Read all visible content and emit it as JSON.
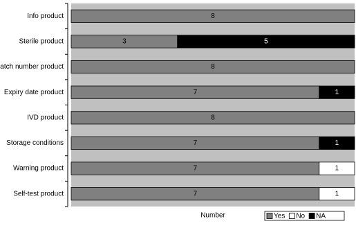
{
  "chart_data": {
    "type": "stacked-bar-horizontal",
    "x_label": "Number",
    "categories": [
      "Info product",
      "Sterile product",
      "Batch number product",
      "Expiry date product",
      "IVD product",
      "Storage conditions",
      "Warning product",
      "Self-test product"
    ],
    "series": [
      {
        "name": "Yes",
        "color": "#808080",
        "values": [
          8,
          3,
          8,
          7,
          8,
          7,
          7,
          7
        ]
      },
      {
        "name": "No",
        "color": "#ffffff",
        "values": [
          null,
          null,
          null,
          null,
          null,
          null,
          1,
          1
        ]
      },
      {
        "name": "NA",
        "color": "#000000",
        "values": [
          null,
          5,
          null,
          1,
          null,
          1,
          null,
          null
        ]
      }
    ],
    "xlim": [
      0,
      8
    ],
    "legend": "bottom-right"
  }
}
